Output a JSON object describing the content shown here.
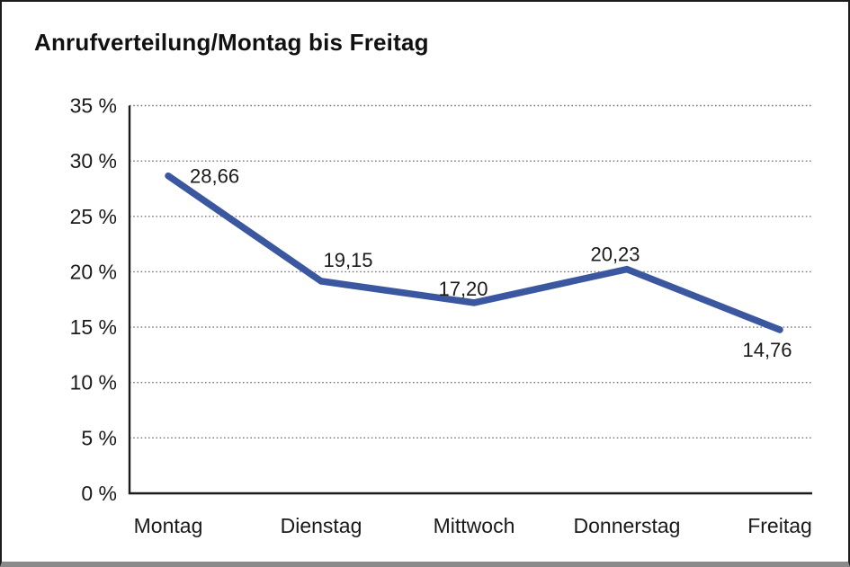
{
  "chart_data": {
    "type": "line",
    "title": "Anrufverteilung/Montag bis Freitag",
    "categories": [
      "Montag",
      "Dienstag",
      "Mittwoch",
      "Donnerstag",
      "Freitag"
    ],
    "values": [
      28.66,
      19.15,
      17.2,
      20.23,
      14.76
    ],
    "point_labels": [
      "28,66",
      "19,15",
      "17,20",
      "20,23",
      "14,76"
    ],
    "xlabel": "",
    "ylabel": "",
    "ylim": [
      0,
      35
    ],
    "y_ticks": [
      0,
      5,
      10,
      15,
      20,
      25,
      30,
      35
    ],
    "y_tick_labels": [
      "0 %",
      "5 %",
      "10 %",
      "15 %",
      "20 %",
      "25 %",
      "30 %",
      "35 %"
    ],
    "grid": "horizontal-dotted",
    "legend": "none",
    "colors": {
      "series_line": "#3A57A0",
      "axis": "#1a1a1a",
      "gridline": "#777777",
      "text": "#1a1a1a",
      "frame_border": "#1c1c1c",
      "frame_bottom": "#8a8a8a",
      "background": "#ffffff"
    }
  }
}
